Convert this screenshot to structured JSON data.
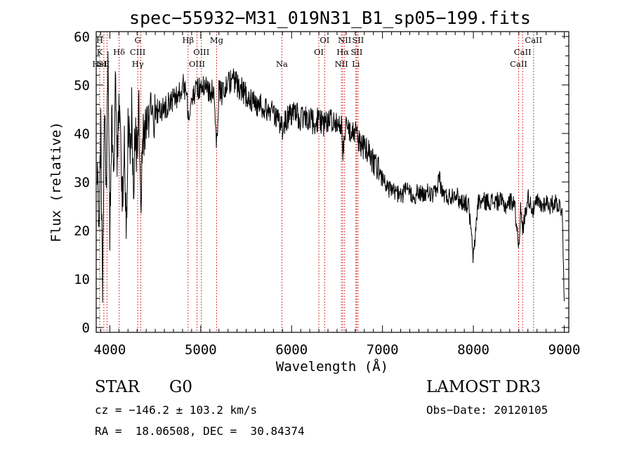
{
  "chart_data": {
    "type": "line",
    "title": "spec−55932−M31_019N31_B1_sp05−199.fits",
    "xlabel": "Wavelength (Å)",
    "ylabel": "Flux (relative)",
    "xlim": [
      3850,
      9050
    ],
    "ylim": [
      -1,
      61
    ],
    "xticks": [
      4000,
      5000,
      6000,
      7000,
      8000,
      9000
    ],
    "yticks": [
      0,
      10,
      20,
      30,
      40,
      50,
      60
    ],
    "series": [
      {
        "x": [
          3860,
          3880,
          3900,
          3920,
          3940,
          3960,
          3980,
          4000,
          4020,
          4040,
          4060,
          4080,
          4100,
          4120,
          4140,
          4160,
          4180,
          4200,
          4220,
          4240,
          4260,
          4280,
          4300,
          4320,
          4340,
          4360,
          4380,
          4400,
          4450,
          4500,
          4550,
          4600,
          4650,
          4700,
          4750,
          4800,
          4850,
          4861,
          4900,
          4950,
          5000,
          5050,
          5100,
          5150,
          5175,
          5200,
          5250,
          5300,
          5350,
          5400,
          5450,
          5500,
          5550,
          5600,
          5650,
          5700,
          5750,
          5800,
          5850,
          5893,
          5950,
          6000,
          6050,
          6100,
          6150,
          6200,
          6250,
          6300,
          6350,
          6400,
          6450,
          6500,
          6550,
          6563,
          6600,
          6650,
          6700,
          6750,
          6800,
          6850,
          6900,
          6950,
          7000,
          7050,
          7100,
          7150,
          7200,
          7250,
          7300,
          7350,
          7400,
          7450,
          7500,
          7550,
          7600,
          7620,
          7650,
          7700,
          7750,
          7800,
          7850,
          7900,
          7950,
          8000,
          8050,
          8100,
          8150,
          8200,
          8250,
          8300,
          8350,
          8400,
          8450,
          8498,
          8520,
          8542,
          8600,
          8662,
          8700,
          8750,
          8800,
          8850,
          8900,
          8950,
          8980,
          9000
        ],
        "y": [
          32,
          22,
          40,
          9,
          45,
          28,
          52,
          20,
          44,
          28,
          50,
          33,
          46,
          38,
          26,
          41,
          18,
          42,
          36,
          44,
          30,
          40,
          35,
          44,
          25,
          42,
          38,
          41,
          43,
          44,
          45,
          45,
          46,
          47,
          48,
          50,
          48,
          42,
          47,
          49,
          49,
          50,
          49,
          48,
          38,
          49,
          48,
          50,
          51,
          50,
          49,
          48,
          47,
          46,
          46,
          45,
          45,
          44,
          43,
          41,
          43,
          44,
          44,
          43,
          43,
          43,
          42,
          43,
          42,
          42,
          43,
          42,
          41,
          36,
          41,
          40,
          40,
          38,
          37,
          36,
          34,
          33,
          31,
          29,
          28,
          28,
          27,
          28,
          28,
          27,
          28,
          27,
          28,
          27,
          28,
          32,
          28,
          27,
          27,
          28,
          26,
          26,
          25,
          14,
          26,
          26,
          26,
          26,
          26,
          26,
          25,
          26,
          26,
          17,
          24,
          20,
          27,
          24,
          26,
          25,
          26,
          25,
          26,
          25,
          24,
          4
        ]
      }
    ],
    "lines": [
      {
        "x": 3889,
        "labels": [
          "H",
          "K",
          "HeI"
        ],
        "rows": [
          0,
          1,
          2
        ]
      },
      {
        "x": 3934,
        "labels": [
          "SII"
        ],
        "rows": [
          2
        ]
      },
      {
        "x": 3969,
        "labels": [],
        "rows": []
      },
      {
        "x": 4102,
        "labels": [
          "Hδ"
        ],
        "rows": [
          1
        ]
      },
      {
        "x": 4307,
        "labels": [
          "G",
          "CIII",
          "Hγ"
        ],
        "rows": [
          0,
          1,
          2
        ]
      },
      {
        "x": 4341,
        "labels": [],
        "rows": []
      },
      {
        "x": 4861,
        "labels": [
          "Hβ"
        ],
        "rows": [
          0
        ]
      },
      {
        "x": 4959,
        "labels": [
          "OIII"
        ],
        "rows": [
          2
        ]
      },
      {
        "x": 5007,
        "labels": [
          "OIII"
        ],
        "rows": [
          1
        ]
      },
      {
        "x": 5175,
        "labels": [
          "Mg"
        ],
        "rows": [
          0
        ]
      },
      {
        "x": 5893,
        "labels": [
          "Na"
        ],
        "rows": [
          2
        ]
      },
      {
        "x": 6300,
        "labels": [
          "OI"
        ],
        "rows": [
          1
        ]
      },
      {
        "x": 6364,
        "labels": [
          "OI"
        ],
        "rows": [
          0
        ]
      },
      {
        "x": 6548,
        "labels": [
          "NII"
        ],
        "rows": [
          2
        ]
      },
      {
        "x": 6563,
        "labels": [
          "Hα"
        ],
        "rows": [
          1
        ]
      },
      {
        "x": 6583,
        "labels": [
          "NII"
        ],
        "rows": [
          0
        ]
      },
      {
        "x": 6707,
        "labels": [
          "Li"
        ],
        "rows": [
          2
        ]
      },
      {
        "x": 6716,
        "labels": [
          "SII"
        ],
        "rows": [
          1
        ]
      },
      {
        "x": 6731,
        "labels": [
          "SII"
        ],
        "rows": [
          0
        ]
      },
      {
        "x": 8498,
        "labels": [
          "CaII"
        ],
        "rows": [
          2
        ]
      },
      {
        "x": 8542,
        "labels": [
          "CaII"
        ],
        "rows": [
          1
        ]
      },
      {
        "x": 8662,
        "labels": [
          "CaII"
        ],
        "rows": [
          0
        ]
      }
    ],
    "line_color": "#cc0000",
    "grid": false,
    "legend": "none"
  },
  "info": {
    "object_class": "STAR",
    "subclass": "G0",
    "survey": "LAMOST DR3",
    "cz": "cz = −146.2 ± 103.2 km/s",
    "obs_date": "Obs−Date: 20120105",
    "coords": "RA =  18.06508, DEC =  30.84374"
  }
}
